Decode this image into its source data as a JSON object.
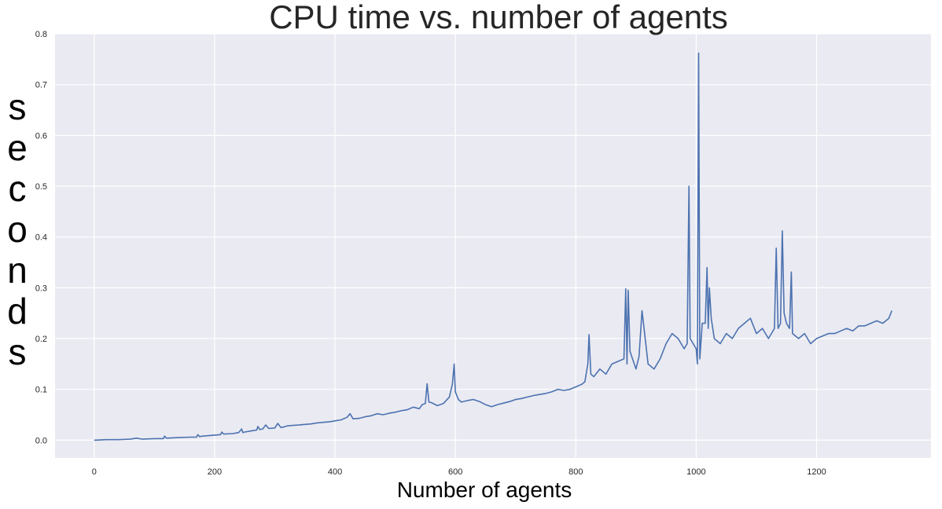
{
  "chart_data": {
    "type": "line",
    "title": "CPU time vs. number of agents",
    "xlabel": "Number of agents",
    "ylabel": "seconds",
    "xlim": [
      -65,
      1390
    ],
    "ylim": [
      -0.035,
      0.8
    ],
    "xticks": [
      "0",
      "200",
      "400",
      "600",
      "800",
      "1000",
      "1200"
    ],
    "yticks": [
      "0.0",
      "0.1",
      "0.2",
      "0.3",
      "0.4",
      "0.5",
      "0.6",
      "0.7",
      "0.8"
    ],
    "grid": true,
    "legend": "none",
    "colors": {
      "series": "#4c72b0",
      "background": "#eaeaf2",
      "grid": "#ffffff"
    },
    "series": [
      {
        "x": [
          0,
          20,
          40,
          60,
          70,
          75,
          80,
          100,
          115,
          117,
          120,
          140,
          160,
          170,
          172,
          175,
          180,
          200,
          210,
          212,
          215,
          230,
          240,
          245,
          247,
          250,
          260,
          270,
          272,
          275,
          280,
          285,
          290,
          300,
          305,
          310,
          315,
          320,
          330,
          340,
          350,
          360,
          370,
          380,
          390,
          400,
          410,
          420,
          425,
          430,
          440,
          450,
          460,
          470,
          480,
          490,
          500,
          510,
          520,
          530,
          540,
          545,
          550,
          553,
          556,
          560,
          570,
          580,
          590,
          595,
          598,
          600,
          605,
          610,
          620,
          630,
          640,
          650,
          660,
          670,
          680,
          690,
          700,
          710,
          720,
          730,
          740,
          750,
          760,
          770,
          780,
          790,
          800,
          810,
          815,
          820,
          822,
          825,
          830,
          840,
          850,
          860,
          870,
          880,
          883,
          885,
          887,
          890,
          900,
          905,
          910,
          920,
          930,
          940,
          950,
          960,
          970,
          980,
          985,
          988,
          990,
          1000,
          1002,
          1004,
          1006,
          1010,
          1015,
          1018,
          1020,
          1022,
          1025,
          1030,
          1040,
          1050,
          1060,
          1070,
          1080,
          1090,
          1100,
          1110,
          1120,
          1130,
          1133,
          1136,
          1140,
          1143,
          1146,
          1150,
          1155,
          1158,
          1160,
          1170,
          1180,
          1190,
          1200,
          1210,
          1220,
          1230,
          1240,
          1250,
          1260,
          1270,
          1280,
          1290,
          1300,
          1310,
          1320,
          1325
        ],
        "y": [
          0.0,
          0.001,
          0.001,
          0.002,
          0.004,
          0.003,
          0.002,
          0.003,
          0.003,
          0.008,
          0.004,
          0.005,
          0.006,
          0.006,
          0.011,
          0.007,
          0.008,
          0.01,
          0.011,
          0.016,
          0.012,
          0.013,
          0.015,
          0.022,
          0.015,
          0.016,
          0.018,
          0.02,
          0.027,
          0.021,
          0.022,
          0.03,
          0.023,
          0.024,
          0.033,
          0.025,
          0.026,
          0.028,
          0.029,
          0.03,
          0.031,
          0.032,
          0.034,
          0.035,
          0.036,
          0.038,
          0.04,
          0.045,
          0.052,
          0.042,
          0.043,
          0.046,
          0.048,
          0.052,
          0.05,
          0.053,
          0.055,
          0.058,
          0.06,
          0.065,
          0.062,
          0.07,
          0.072,
          0.111,
          0.075,
          0.074,
          0.068,
          0.072,
          0.085,
          0.11,
          0.15,
          0.095,
          0.08,
          0.075,
          0.078,
          0.08,
          0.076,
          0.07,
          0.066,
          0.07,
          0.073,
          0.076,
          0.08,
          0.082,
          0.085,
          0.088,
          0.09,
          0.092,
          0.095,
          0.1,
          0.098,
          0.1,
          0.105,
          0.11,
          0.115,
          0.15,
          0.208,
          0.13,
          0.125,
          0.14,
          0.13,
          0.15,
          0.155,
          0.16,
          0.298,
          0.15,
          0.295,
          0.175,
          0.14,
          0.165,
          0.255,
          0.15,
          0.14,
          0.16,
          0.19,
          0.21,
          0.2,
          0.18,
          0.19,
          0.5,
          0.2,
          0.18,
          0.15,
          0.762,
          0.16,
          0.23,
          0.23,
          0.34,
          0.22,
          0.3,
          0.24,
          0.2,
          0.19,
          0.21,
          0.2,
          0.22,
          0.23,
          0.24,
          0.21,
          0.22,
          0.2,
          0.22,
          0.378,
          0.22,
          0.23,
          0.412,
          0.25,
          0.23,
          0.22,
          0.331,
          0.21,
          0.2,
          0.21,
          0.19,
          0.2,
          0.205,
          0.21,
          0.21,
          0.215,
          0.22,
          0.215,
          0.225,
          0.225,
          0.23,
          0.235,
          0.23,
          0.24,
          0.255
        ]
      }
    ]
  }
}
